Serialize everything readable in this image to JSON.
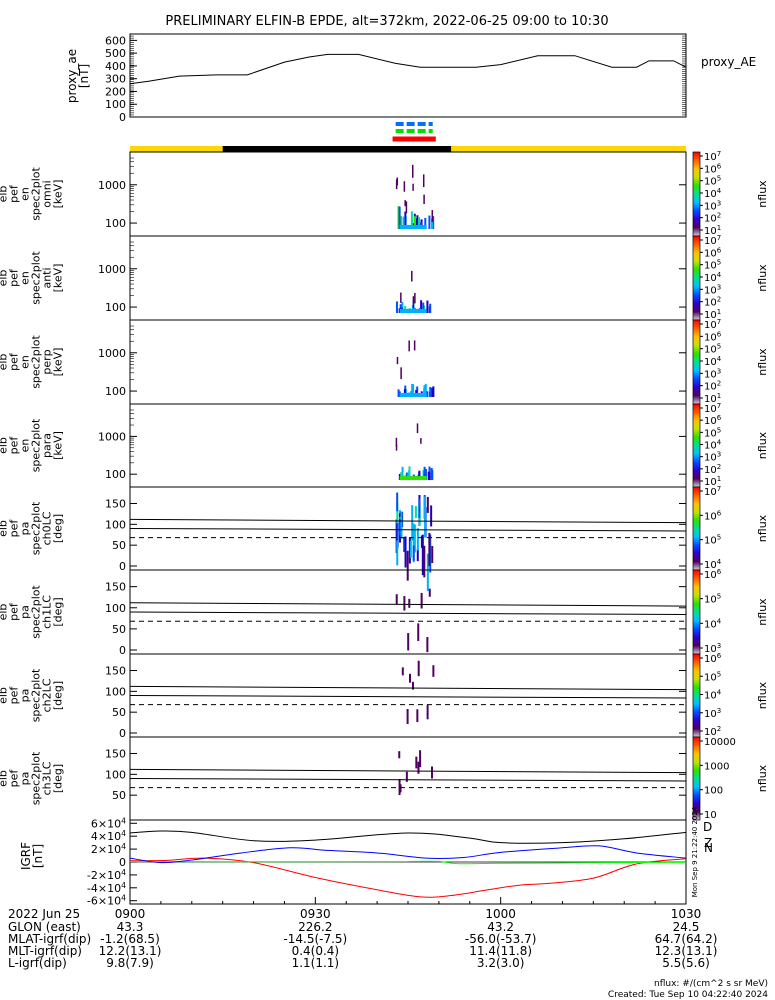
{
  "title": "PRELIMINARY ELFIN-B EPDE, alt=372km, 2022-06-25 09:00 to 10:30",
  "ae_panel": {
    "ylabel": "proxy_ae\n[nT]",
    "legend": "proxy_AE",
    "yticks": [
      "0",
      "100",
      "200",
      "300",
      "400",
      "500",
      "600"
    ],
    "ylim": [
      0,
      650
    ]
  },
  "spec_panels": [
    {
      "ylabel": [
        "elb",
        "pef",
        "en",
        "spec2plot",
        "omni",
        "[keV]"
      ],
      "yticks": [
        "100",
        "1000"
      ],
      "cbar_ticks": [
        "10^1",
        "10^2",
        "10^3",
        "10^4",
        "10^5",
        "10^6",
        "10^7"
      ],
      "cbar_label": "nflux"
    },
    {
      "ylabel": [
        "elb",
        "pef",
        "en",
        "spec2plot",
        "anti",
        "[keV]"
      ],
      "yticks": [
        "100",
        "1000"
      ],
      "cbar_ticks": [
        "10^1",
        "10^2",
        "10^3",
        "10^4",
        "10^5",
        "10^6",
        "10^7"
      ],
      "cbar_label": "nflux"
    },
    {
      "ylabel": [
        "elb",
        "pef",
        "en",
        "spec2plot",
        "perp",
        "[keV]"
      ],
      "yticks": [
        "100",
        "1000"
      ],
      "cbar_ticks": [
        "10^1",
        "10^2",
        "10^3",
        "10^4",
        "10^5",
        "10^6",
        "10^7"
      ],
      "cbar_label": "nflux"
    },
    {
      "ylabel": [
        "elb",
        "pef",
        "en",
        "spec2plot",
        "para",
        "[keV]"
      ],
      "yticks": [
        "100",
        "1000"
      ],
      "cbar_ticks": [
        "10^1",
        "10^2",
        "10^3",
        "10^4",
        "10^5",
        "10^6",
        "10^7"
      ],
      "cbar_label": "nflux"
    },
    {
      "ylabel": [
        "elb",
        "pef",
        "pa",
        "spec2plot",
        "ch0LC",
        "[deg]"
      ],
      "yticks": [
        "0",
        "50",
        "100",
        "150"
      ],
      "cbar_ticks": [
        "10^4",
        "10^5",
        "10^6",
        "10^7"
      ],
      "cbar_label": "nflux"
    },
    {
      "ylabel": [
        "elb",
        "pef",
        "pa",
        "spec2plot",
        "ch1LC",
        "[deg]"
      ],
      "yticks": [
        "0",
        "50",
        "100",
        "150"
      ],
      "cbar_ticks": [
        "10^3",
        "10^4",
        "10^5",
        "10^6"
      ],
      "cbar_label": "nflux"
    },
    {
      "ylabel": [
        "elb",
        "pef",
        "pa",
        "spec2plot",
        "ch2LC",
        "[deg]"
      ],
      "yticks": [
        "0",
        "50",
        "100",
        "150"
      ],
      "cbar_ticks": [
        "10^2",
        "10^3",
        "10^4",
        "10^5",
        "10^6"
      ],
      "cbar_label": "nflux"
    },
    {
      "ylabel": [
        "elb",
        "pef",
        "pa",
        "spec2plot",
        "ch3LC",
        "[deg]"
      ],
      "yticks": [
        "50",
        "100",
        "150"
      ],
      "cbar_ticks": [
        "10",
        "100",
        "1000",
        "10000"
      ],
      "cbar_label": "nflux"
    }
  ],
  "igrf_panel": {
    "ylabel": "IGRF\n[nT]",
    "yticks": [
      "-6×10^4",
      "-4×10^4",
      "-2×10^4",
      "0",
      "2×10^4",
      "4×10^4",
      "6×10^4"
    ],
    "legend": [
      "D",
      "N",
      "Z"
    ],
    "side_text": "Mon Sep 9 21:22:40 2024"
  },
  "chart_data": {
    "type": "line",
    "title": "PRELIMINARY ELFIN-B EPDE, alt=372km, 2022-06-25 09:00 to 10:30",
    "x_ticks": [
      "0900",
      "0930",
      "1000",
      "1030"
    ],
    "series": [
      {
        "name": "proxy_AE",
        "x_minutes": [
          0,
          3,
          8,
          14,
          19,
          25,
          29,
          32,
          37,
          43,
          47,
          52,
          56,
          60,
          66,
          72,
          78,
          82,
          84,
          88,
          90
        ],
        "values": [
          260,
          280,
          320,
          330,
          330,
          430,
          470,
          490,
          490,
          420,
          390,
          390,
          390,
          410,
          480,
          480,
          390,
          390,
          440,
          440,
          390
        ]
      }
    ],
    "igrf": [
      {
        "name": "D",
        "color": "#ff0000",
        "x_minutes": [
          0,
          6,
          12,
          20,
          30,
          40,
          47,
          52,
          58,
          63,
          68,
          75,
          82,
          90
        ],
        "values": [
          2000,
          2500,
          6000,
          -1000,
          -24000,
          -43000,
          -54000,
          -52000,
          -43000,
          -36000,
          -33000,
          -25000,
          -3000,
          5000
        ]
      },
      {
        "name": "N",
        "color": "#00ff00",
        "x_minutes": [
          0,
          40,
          46,
          50,
          53,
          60,
          70,
          80,
          90
        ],
        "values": [
          500,
          500,
          1000,
          1000,
          -2500,
          -2000,
          -1500,
          -800,
          -500
        ]
      },
      {
        "name": "Z",
        "color": "#0000ff",
        "x_minutes": [
          0,
          5,
          10,
          18,
          26,
          32,
          40,
          48,
          54,
          60,
          70,
          76,
          82,
          90
        ],
        "values": [
          6000,
          -1000,
          3000,
          14000,
          22000,
          18000,
          14000,
          6000,
          7000,
          15000,
          22000,
          25000,
          14000,
          6000
        ]
      },
      {
        "name": "total",
        "color": "#000000",
        "x_minutes": [
          0,
          5,
          10,
          20,
          30,
          45,
          55,
          60,
          70,
          80,
          90
        ],
        "values": [
          45000,
          48000,
          46000,
          33000,
          34000,
          45000,
          37000,
          30000,
          30000,
          36000,
          46000
        ]
      }
    ],
    "orbit_bar": [
      {
        "from": 0,
        "to": 15,
        "color": "#ffd700"
      },
      {
        "from": 15,
        "to": 52,
        "color": "#000000"
      },
      {
        "from": 52,
        "to": 90,
        "color": "#ffd700"
      }
    ],
    "science_bars": [
      {
        "row": 0,
        "from": 43,
        "to": 49,
        "color": "#0070ff",
        "dashed": true
      },
      {
        "row": 1,
        "from": 43,
        "to": 49,
        "color": "#00e000",
        "dashed": true
      },
      {
        "row": 2,
        "from": 42.5,
        "to": 49.5,
        "color": "#ff0000",
        "dashed": false
      }
    ]
  },
  "footer": {
    "rows": [
      [
        "2022 Jun 25",
        "0900",
        "0930",
        "1000",
        "1030"
      ],
      [
        "GLON (east)",
        "43.3",
        "226.2",
        "43.2",
        "24.5"
      ],
      [
        "MLAT-igrf(dip)",
        "-1.2(68.5)",
        "-14.5(-7.5)",
        "-56.0(-53.7)",
        "64.7(64.2)"
      ],
      [
        "MLT-igrf(dip)",
        "12.2(13.1)",
        "0.4(0.4)",
        "11.4(11.8)",
        "12.3(13.1)"
      ],
      [
        "L-igrf(dip)",
        "9.8(7.9)",
        "1.1(1.1)",
        "3.2(3.0)",
        "5.5(5.6)"
      ]
    ],
    "note1": "nflux: #/(cm^2 s sr MeV)",
    "note2": "Created: Tue Sep 10 04:22:40 2024"
  },
  "colors": {
    "spectro": [
      "#ffffff",
      "#500060",
      "#2000c0",
      "#0050ff",
      "#00b0ff",
      "#00e0a0",
      "#30e000",
      "#d0e000",
      "#ffb000",
      "#ff5000",
      "#ff0000"
    ]
  }
}
